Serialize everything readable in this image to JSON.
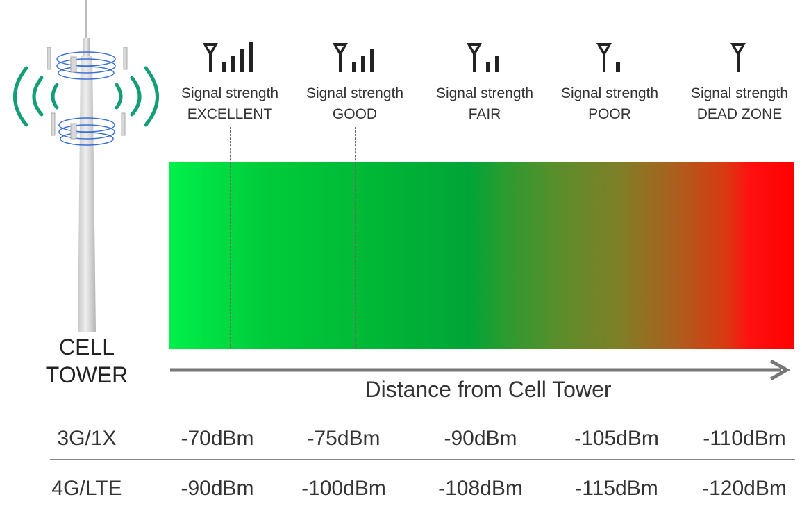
{
  "tower": {
    "label_line1": "CELL",
    "label_line2": "TOWER",
    "wave_color": "#129e78",
    "icon": "cell-tower-icon"
  },
  "levels": [
    {
      "title": "Signal strength",
      "name": "EXCELLENT",
      "bars": 4
    },
    {
      "title": "Signal strength",
      "name": "GOOD",
      "bars": 3
    },
    {
      "title": "Signal strength",
      "name": "FAIR",
      "bars": 2
    },
    {
      "title": "Signal strength",
      "name": "POOR",
      "bars": 1
    },
    {
      "title": "Signal strength",
      "name": "DEAD ZONE",
      "bars": 0
    }
  ],
  "gradient": {
    "start_color": "#00f04a",
    "mid_color": "#00a537",
    "end_color": "#ff0000"
  },
  "axis": {
    "label": "Distance from Cell Tower"
  },
  "table": {
    "rows": [
      {
        "label": "3G/1X",
        "values": [
          "-70dBm",
          "-75dBm",
          "-90dBm",
          "-105dBm",
          "-110dBm"
        ]
      },
      {
        "label": "4G/LTE",
        "values": [
          "-90dBm",
          "-100dBm",
          "-108dBm",
          "-115dBm",
          "-120dBm"
        ]
      }
    ]
  }
}
